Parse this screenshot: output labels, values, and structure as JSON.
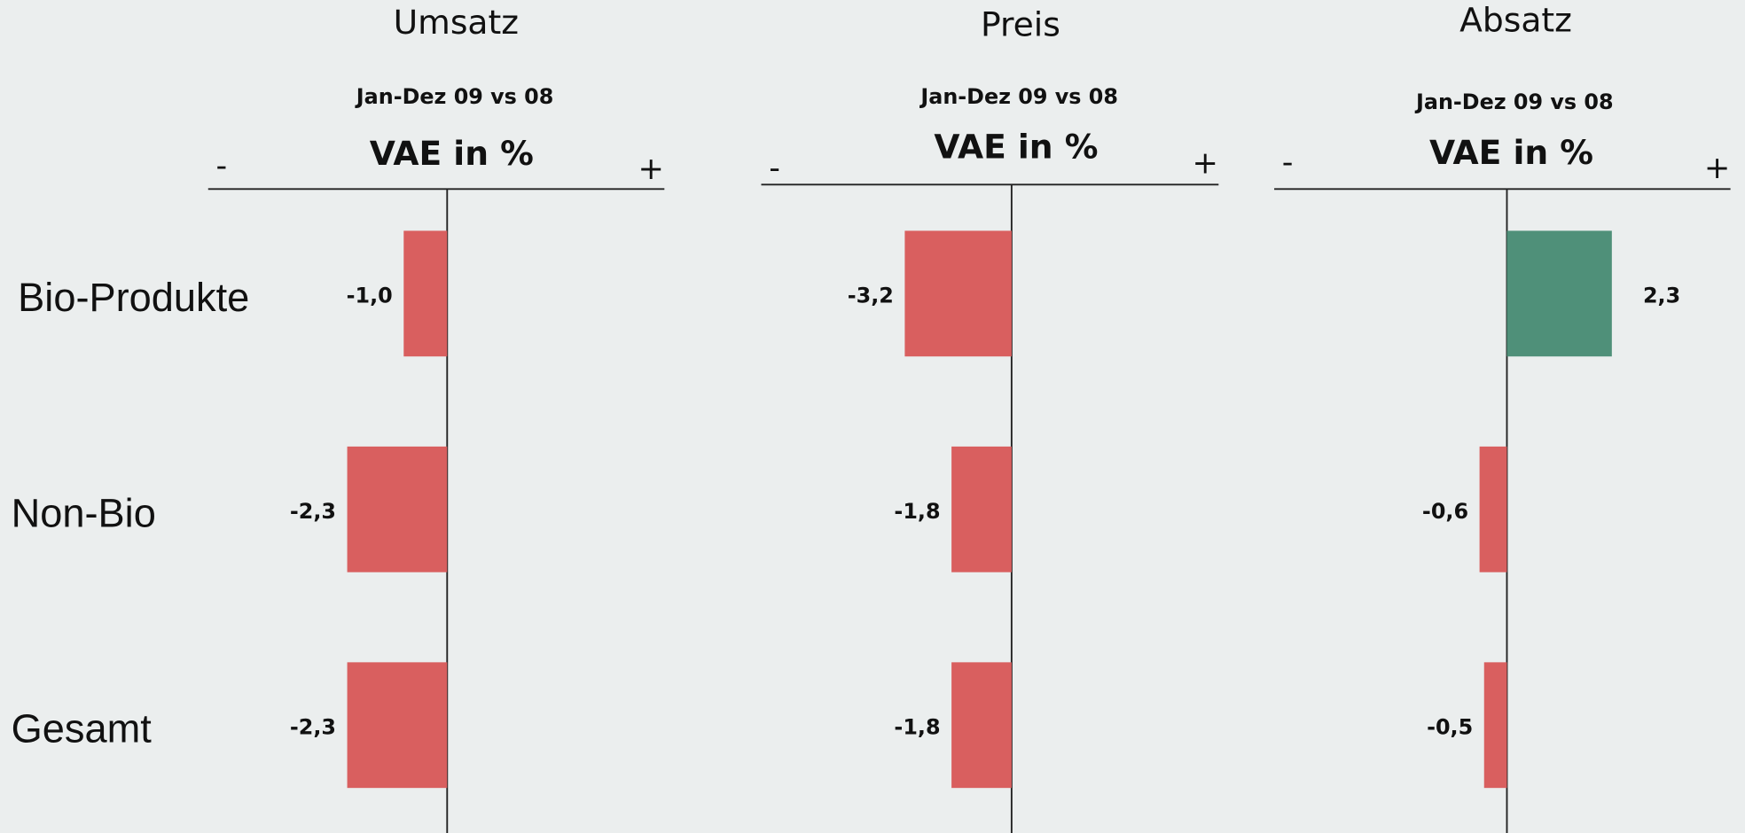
{
  "chart_data": [
    {
      "type": "bar",
      "title": "Umsatz",
      "subtitle": "Jan-Dez 09 vs 08",
      "xlabel": "VAE in %",
      "neg_label": "-",
      "pos_label": "+",
      "categories": [
        "Bio-Produkte",
        "Non-Bio",
        "Gesamt"
      ],
      "values": [
        -1.0,
        -2.3,
        -2.3
      ],
      "value_labels": [
        "-1,0",
        "-2,3",
        "-2,3"
      ],
      "colors": [
        "#d95f5f",
        "#d95f5f",
        "#d95f5f"
      ],
      "xlim": [
        -5.5,
        5
      ]
    },
    {
      "type": "bar",
      "title": "Preis",
      "subtitle": "Jan-Dez 09 vs 08",
      "xlabel": "VAE in %",
      "neg_label": "-",
      "pos_label": "+",
      "values": [
        -3.2,
        -1.8,
        -1.8
      ],
      "value_labels": [
        "-3,2",
        "-1,8",
        "-1,8"
      ],
      "colors": [
        "#d95f5f",
        "#d95f5f",
        "#d95f5f"
      ],
      "xlim": [
        -7.5,
        6.2
      ]
    },
    {
      "type": "bar",
      "title": "Absatz",
      "subtitle": "Jan-Dez 09 vs 08",
      "xlabel": "VAE in %",
      "neg_label": "-",
      "pos_label": "+",
      "values": [
        2.3,
        -0.6,
        -0.5
      ],
      "value_labels": [
        "2,3",
        "-0,6",
        "-0,5"
      ],
      "colors": [
        "#4f9079",
        "#d95f5f",
        "#d95f5f"
      ],
      "xlim": [
        -5.1,
        4.9
      ]
    }
  ]
}
